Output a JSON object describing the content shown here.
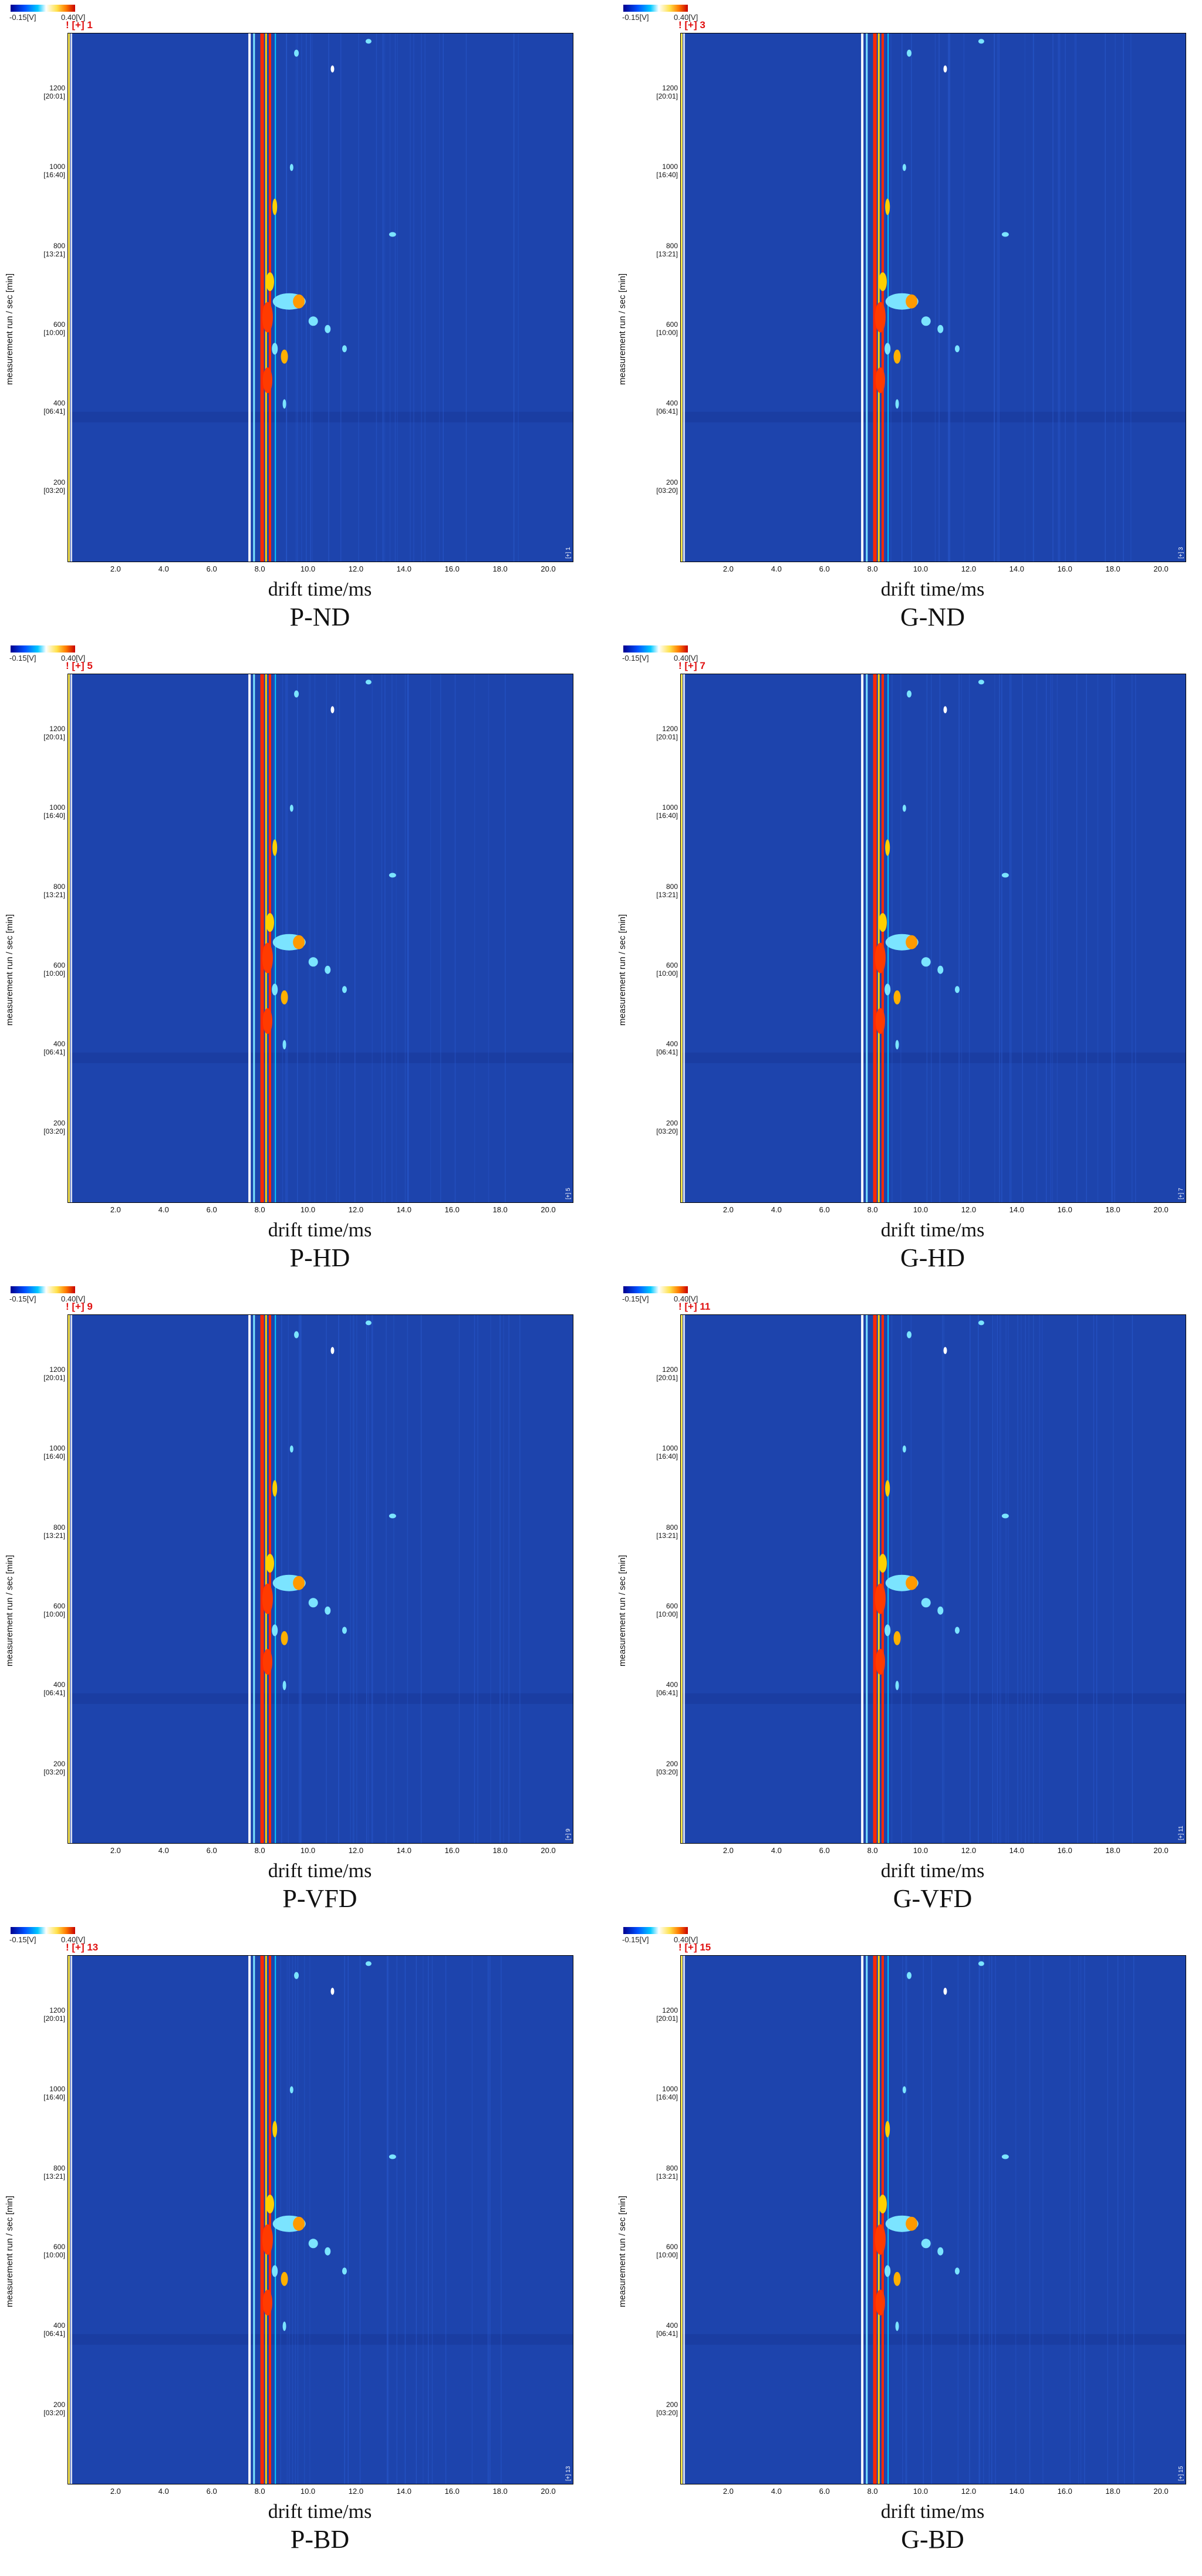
{
  "chart_data": [
    {
      "type": "heatmap",
      "title": "P-ND",
      "tag": "! [+] 1",
      "corner": "[+] 1",
      "xlabel": "drift time/ms",
      "ylabel": "measurement run / sec [min]",
      "legend": {
        "min": "-0.15[V]",
        "max": "0.40[V]"
      },
      "xlim": [
        0,
        21
      ],
      "ylim": [
        0,
        1340
      ],
      "x_ticks": [
        "2.0",
        "4.0",
        "6.0",
        "8.0",
        "10.0",
        "12.0",
        "14.0",
        "16.0",
        "18.0",
        "20.0"
      ],
      "y_ticks": [
        {
          "sec": "200",
          "min": "[03:20]"
        },
        {
          "sec": "400",
          "min": "[06:41]"
        },
        {
          "sec": "600",
          "min": "[10:00]"
        },
        {
          "sec": "800",
          "min": "[13:21]"
        },
        {
          "sec": "1000",
          "min": "[16:40]"
        },
        {
          "sec": "1200",
          "min": "[20:01]"
        }
      ]
    },
    {
      "type": "heatmap",
      "title": "G-ND",
      "tag": "! [+] 3",
      "corner": "[+] 3",
      "xlabel": "drift time/ms",
      "ylabel": "measurement run / sec [min]",
      "legend": {
        "min": "-0.15[V]",
        "max": "0.40[V]"
      },
      "xlim": [
        0,
        21
      ],
      "ylim": [
        0,
        1340
      ],
      "x_ticks": [
        "2.0",
        "4.0",
        "6.0",
        "8.0",
        "10.0",
        "12.0",
        "14.0",
        "16.0",
        "18.0",
        "20.0"
      ],
      "y_ticks": [
        {
          "sec": "200",
          "min": "[03:20]"
        },
        {
          "sec": "400",
          "min": "[06:41]"
        },
        {
          "sec": "600",
          "min": "[10:00]"
        },
        {
          "sec": "800",
          "min": "[13:21]"
        },
        {
          "sec": "1000",
          "min": "[16:40]"
        },
        {
          "sec": "1200",
          "min": "[20:01]"
        }
      ]
    },
    {
      "type": "heatmap",
      "title": "P-HD",
      "tag": "! [+] 5",
      "corner": "[+] 5",
      "xlabel": "drift time/ms",
      "ylabel": "measurement run / sec [min]",
      "legend": {
        "min": "-0.15[V]",
        "max": "0.40[V]"
      },
      "xlim": [
        0,
        21
      ],
      "ylim": [
        0,
        1340
      ],
      "x_ticks": [
        "2.0",
        "4.0",
        "6.0",
        "8.0",
        "10.0",
        "12.0",
        "14.0",
        "16.0",
        "18.0",
        "20.0"
      ],
      "y_ticks": [
        {
          "sec": "200",
          "min": "[03:20]"
        },
        {
          "sec": "400",
          "min": "[06:41]"
        },
        {
          "sec": "600",
          "min": "[10:00]"
        },
        {
          "sec": "800",
          "min": "[13:21]"
        },
        {
          "sec": "1000",
          "min": "[16:40]"
        },
        {
          "sec": "1200",
          "min": "[20:01]"
        }
      ]
    },
    {
      "type": "heatmap",
      "title": "G-HD",
      "tag": "! [+] 7",
      "corner": "[+] 7",
      "xlabel": "drift time/ms",
      "ylabel": "measurement run / sec [min]",
      "legend": {
        "min": "-0.15[V]",
        "max": "0.40[V]"
      },
      "xlim": [
        0,
        21
      ],
      "ylim": [
        0,
        1340
      ],
      "x_ticks": [
        "2.0",
        "4.0",
        "6.0",
        "8.0",
        "10.0",
        "12.0",
        "14.0",
        "16.0",
        "18.0",
        "20.0"
      ],
      "y_ticks": [
        {
          "sec": "200",
          "min": "[03:20]"
        },
        {
          "sec": "400",
          "min": "[06:41]"
        },
        {
          "sec": "600",
          "min": "[10:00]"
        },
        {
          "sec": "800",
          "min": "[13:21]"
        },
        {
          "sec": "1000",
          "min": "[16:40]"
        },
        {
          "sec": "1200",
          "min": "[20:01]"
        }
      ]
    },
    {
      "type": "heatmap",
      "title": "P-VFD",
      "tag": "! [+] 9",
      "corner": "[+] 9",
      "xlabel": "drift time/ms",
      "ylabel": "measurement run / sec [min]",
      "legend": {
        "min": "-0.15[V]",
        "max": "0.40[V]"
      },
      "xlim": [
        0,
        21
      ],
      "ylim": [
        0,
        1340
      ],
      "x_ticks": [
        "2.0",
        "4.0",
        "6.0",
        "8.0",
        "10.0",
        "12.0",
        "14.0",
        "16.0",
        "18.0",
        "20.0"
      ],
      "y_ticks": [
        {
          "sec": "200",
          "min": "[03:20]"
        },
        {
          "sec": "400",
          "min": "[06:41]"
        },
        {
          "sec": "600",
          "min": "[10:00]"
        },
        {
          "sec": "800",
          "min": "[13:21]"
        },
        {
          "sec": "1000",
          "min": "[16:40]"
        },
        {
          "sec": "1200",
          "min": "[20:01]"
        }
      ]
    },
    {
      "type": "heatmap",
      "title": "G-VFD",
      "tag": "! [+] 11",
      "corner": "[+] 11",
      "xlabel": "drift time/ms",
      "ylabel": "measurement run / sec [min]",
      "legend": {
        "min": "-0.15[V]",
        "max": "0.40[V]"
      },
      "xlim": [
        0,
        21
      ],
      "ylim": [
        0,
        1340
      ],
      "x_ticks": [
        "2.0",
        "4.0",
        "6.0",
        "8.0",
        "10.0",
        "12.0",
        "14.0",
        "16.0",
        "18.0",
        "20.0"
      ],
      "y_ticks": [
        {
          "sec": "200",
          "min": "[03:20]"
        },
        {
          "sec": "400",
          "min": "[06:41]"
        },
        {
          "sec": "600",
          "min": "[10:00]"
        },
        {
          "sec": "800",
          "min": "[13:21]"
        },
        {
          "sec": "1000",
          "min": "[16:40]"
        },
        {
          "sec": "1200",
          "min": "[20:01]"
        }
      ]
    },
    {
      "type": "heatmap",
      "title": "P-BD",
      "tag": "! [+] 13",
      "corner": "[+] 13",
      "xlabel": "drift time/ms",
      "ylabel": "measurement run / sec [min]",
      "legend": {
        "min": "-0.15[V]",
        "max": "0.40[V]"
      },
      "xlim": [
        0,
        21
      ],
      "ylim": [
        0,
        1340
      ],
      "x_ticks": [
        "2.0",
        "4.0",
        "6.0",
        "8.0",
        "10.0",
        "12.0",
        "14.0",
        "16.0",
        "18.0",
        "20.0"
      ],
      "y_ticks": [
        {
          "sec": "200",
          "min": "[03:20]"
        },
        {
          "sec": "400",
          "min": "[06:41]"
        },
        {
          "sec": "600",
          "min": "[10:00]"
        },
        {
          "sec": "800",
          "min": "[13:21]"
        },
        {
          "sec": "1000",
          "min": "[16:40]"
        },
        {
          "sec": "1200",
          "min": "[20:01]"
        }
      ]
    },
    {
      "type": "heatmap",
      "title": "G-BD",
      "tag": "! [+] 15",
      "corner": "[+] 15",
      "xlabel": "drift time/ms",
      "ylabel": "measurement run / sec [min]",
      "legend": {
        "min": "-0.15[V]",
        "max": "0.40[V]"
      },
      "xlim": [
        0,
        21
      ],
      "ylim": [
        0,
        1340
      ],
      "x_ticks": [
        "2.0",
        "4.0",
        "6.0",
        "8.0",
        "10.0",
        "12.0",
        "14.0",
        "16.0",
        "18.0",
        "20.0"
      ],
      "y_ticks": [
        {
          "sec": "200",
          "min": "[03:20]"
        },
        {
          "sec": "400",
          "min": "[06:41]"
        },
        {
          "sec": "600",
          "min": "[10:00]"
        },
        {
          "sec": "800",
          "min": "[13:21]"
        },
        {
          "sec": "1000",
          "min": "[16:40]"
        },
        {
          "sec": "1200",
          "min": "[20:01]"
        }
      ]
    }
  ]
}
